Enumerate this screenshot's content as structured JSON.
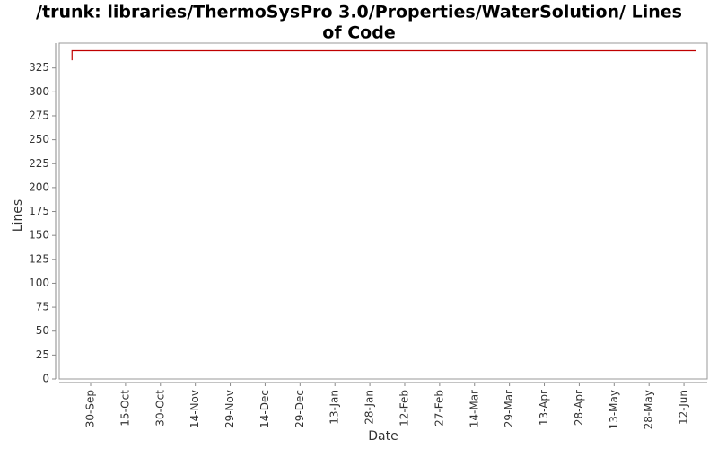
{
  "chart_data": {
    "type": "line",
    "title": [
      "/trunk: libraries/ThermoSysPro 3.0/Properties/WaterSolution/ Lines",
      "of Code"
    ],
    "x_label": "Date",
    "y_label": "Lines",
    "x": [
      -8,
      -8,
      260
    ],
    "series": [
      {
        "name": "Lines",
        "color": "#c00000",
        "values": [
          333,
          343,
          343
        ]
      }
    ],
    "xlim": [
      -13.5,
      265
    ],
    "ylim": [
      0,
      351
    ],
    "xticks": [
      {
        "value": 0,
        "label": "30-Sep"
      },
      {
        "value": 15,
        "label": "15-Oct"
      },
      {
        "value": 30,
        "label": "30-Oct"
      },
      {
        "value": 45,
        "label": "14-Nov"
      },
      {
        "value": 60,
        "label": "29-Nov"
      },
      {
        "value": 75,
        "label": "14-Dec"
      },
      {
        "value": 90,
        "label": "29-Dec"
      },
      {
        "value": 105,
        "label": "13-Jan"
      },
      {
        "value": 120,
        "label": "28-Jan"
      },
      {
        "value": 135,
        "label": "12-Feb"
      },
      {
        "value": 150,
        "label": "27-Feb"
      },
      {
        "value": 165,
        "label": "14-Mar"
      },
      {
        "value": 180,
        "label": "29-Mar"
      },
      {
        "value": 195,
        "label": "13-Apr"
      },
      {
        "value": 210,
        "label": "28-Apr"
      },
      {
        "value": 225,
        "label": "13-May"
      },
      {
        "value": 240,
        "label": "28-May"
      },
      {
        "value": 255,
        "label": "12-Jun"
      }
    ],
    "yticks": [
      0,
      25,
      50,
      75,
      100,
      125,
      150,
      175,
      200,
      225,
      250,
      275,
      300,
      325
    ],
    "grid": false
  }
}
